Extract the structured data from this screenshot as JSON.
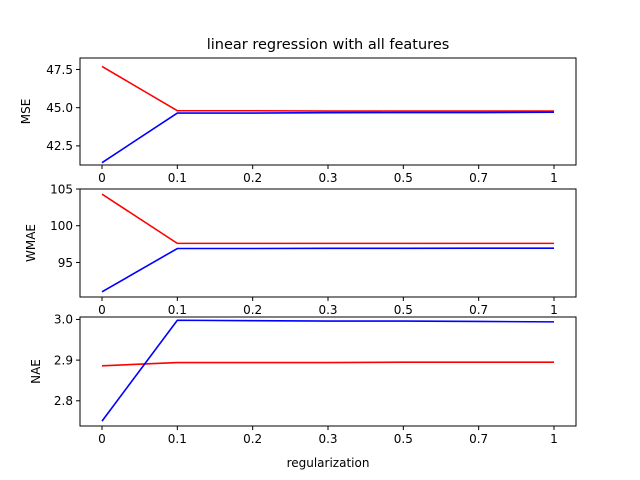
{
  "figure": {
    "title": "linear regression with all features"
  },
  "chart_data": [
    {
      "type": "line",
      "title": "linear regression with all features",
      "xlabel": "",
      "ylabel": "MSE",
      "categories": [
        "0",
        "0.1",
        "0.2",
        "0.3",
        "0.5",
        "0.7",
        "1"
      ],
      "ylim": [
        41.25,
        48.25
      ],
      "yticks": [
        42.5,
        45.0,
        47.5
      ],
      "ytick_labels": [
        "42.5",
        "45.0",
        "47.5"
      ],
      "grid": false,
      "series": [
        {
          "color": "#ff0000",
          "values": [
            47.7,
            44.8,
            44.8,
            44.78,
            44.78,
            44.78,
            44.78
          ]
        },
        {
          "color": "#0000ff",
          "values": [
            41.4,
            44.65,
            44.65,
            44.67,
            44.68,
            44.68,
            44.7
          ]
        }
      ]
    },
    {
      "type": "line",
      "xlabel": "",
      "ylabel": "WMAE",
      "categories": [
        "0",
        "0.1",
        "0.2",
        "0.3",
        "0.5",
        "0.7",
        "1"
      ],
      "ylim": [
        90.3,
        105.0
      ],
      "yticks": [
        95,
        100,
        105
      ],
      "ytick_labels": [
        "95",
        "100",
        "105"
      ],
      "grid": false,
      "series": [
        {
          "color": "#ff0000",
          "values": [
            104.3,
            97.6,
            97.6,
            97.6,
            97.6,
            97.6,
            97.6
          ]
        },
        {
          "color": "#0000ff",
          "values": [
            91.0,
            96.9,
            96.9,
            96.92,
            96.93,
            96.94,
            96.95
          ]
        }
      ]
    },
    {
      "type": "line",
      "xlabel": "regularization",
      "ylabel": "NAE",
      "categories": [
        "0",
        "0.1",
        "0.2",
        "0.3",
        "0.5",
        "0.7",
        "1"
      ],
      "ylim": [
        2.738,
        3.006
      ],
      "yticks": [
        2.8,
        2.9,
        3.0
      ],
      "ytick_labels": [
        "2.8",
        "2.9",
        "3.0"
      ],
      "grid": false,
      "series": [
        {
          "color": "#ff0000",
          "values": [
            2.886,
            2.894,
            2.894,
            2.894,
            2.895,
            2.895,
            2.895
          ]
        },
        {
          "color": "#0000ff",
          "values": [
            2.75,
            2.998,
            2.997,
            2.996,
            2.996,
            2.995,
            2.994
          ]
        }
      ]
    }
  ]
}
